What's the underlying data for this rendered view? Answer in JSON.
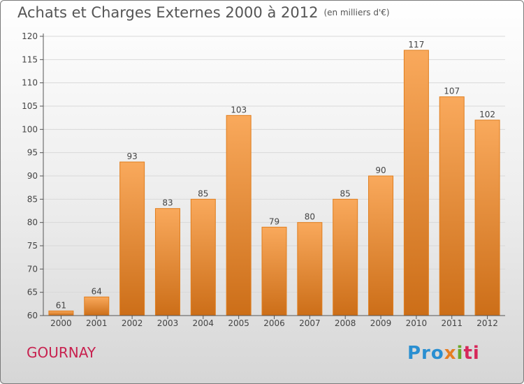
{
  "chart_data": {
    "type": "bar",
    "title": "Achats et Charges Externes 2000 à 2012",
    "subtitle": "(en milliers d'€)",
    "categories": [
      "2000",
      "2001",
      "2002",
      "2003",
      "2004",
      "2005",
      "2006",
      "2007",
      "2008",
      "2009",
      "2010",
      "2011",
      "2012"
    ],
    "values": [
      61,
      64,
      93,
      83,
      85,
      103,
      79,
      80,
      85,
      90,
      117,
      107,
      102
    ],
    "ylim": [
      60,
      120
    ],
    "yticks": [
      60,
      65,
      70,
      75,
      80,
      85,
      90,
      95,
      100,
      105,
      110,
      115,
      120
    ],
    "grid": true,
    "colors": {
      "bar_top": "#f9a95c",
      "bar_bottom": "#cc6e18",
      "bar_edge": "#e07e1e"
    }
  },
  "commune": "GOURNAY",
  "logo": {
    "text": "Proxiti",
    "parts": [
      "Pro",
      "x",
      "i",
      "ti"
    ]
  }
}
